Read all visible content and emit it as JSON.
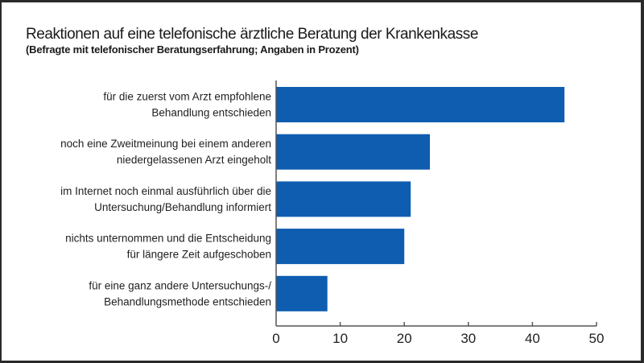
{
  "chart_data": {
    "type": "bar",
    "orientation": "horizontal",
    "title": "Reaktionen auf eine telefonische ärztliche Beratung der Krankenkasse",
    "subtitle": "(Befragte mit telefonischer Beratungserfahrung; Angaben in Prozent)",
    "xlabel": "",
    "ylabel": "",
    "categories": [
      [
        "für die zuerst vom Arzt empfohlene",
        "Behandlung entschieden"
      ],
      [
        "noch eine Zweitmeinung bei einem anderen",
        "niedergelassenen Arzt eingeholt"
      ],
      [
        "im Internet noch einmal ausführlich über die",
        "Untersuchung/Behandlung informiert"
      ],
      [
        "nichts unternommen und die Entscheidung",
        "für längere Zeit aufgeschoben"
      ],
      [
        "für eine ganz andere Untersuchungs-/",
        "Behandlungsmethode entschieden"
      ]
    ],
    "values": [
      45,
      24,
      21,
      20,
      8
    ],
    "xlim": [
      0,
      50
    ],
    "xticks": [
      0,
      10,
      20,
      30,
      40,
      50
    ],
    "xtick_labels": [
      "0",
      "10",
      "20",
      "30",
      "40",
      "50"
    ],
    "grid": false,
    "legend": "none",
    "colors": {
      "bar": "#0E5DB0",
      "axis": "#555555",
      "text": "#1f1f1f"
    }
  }
}
